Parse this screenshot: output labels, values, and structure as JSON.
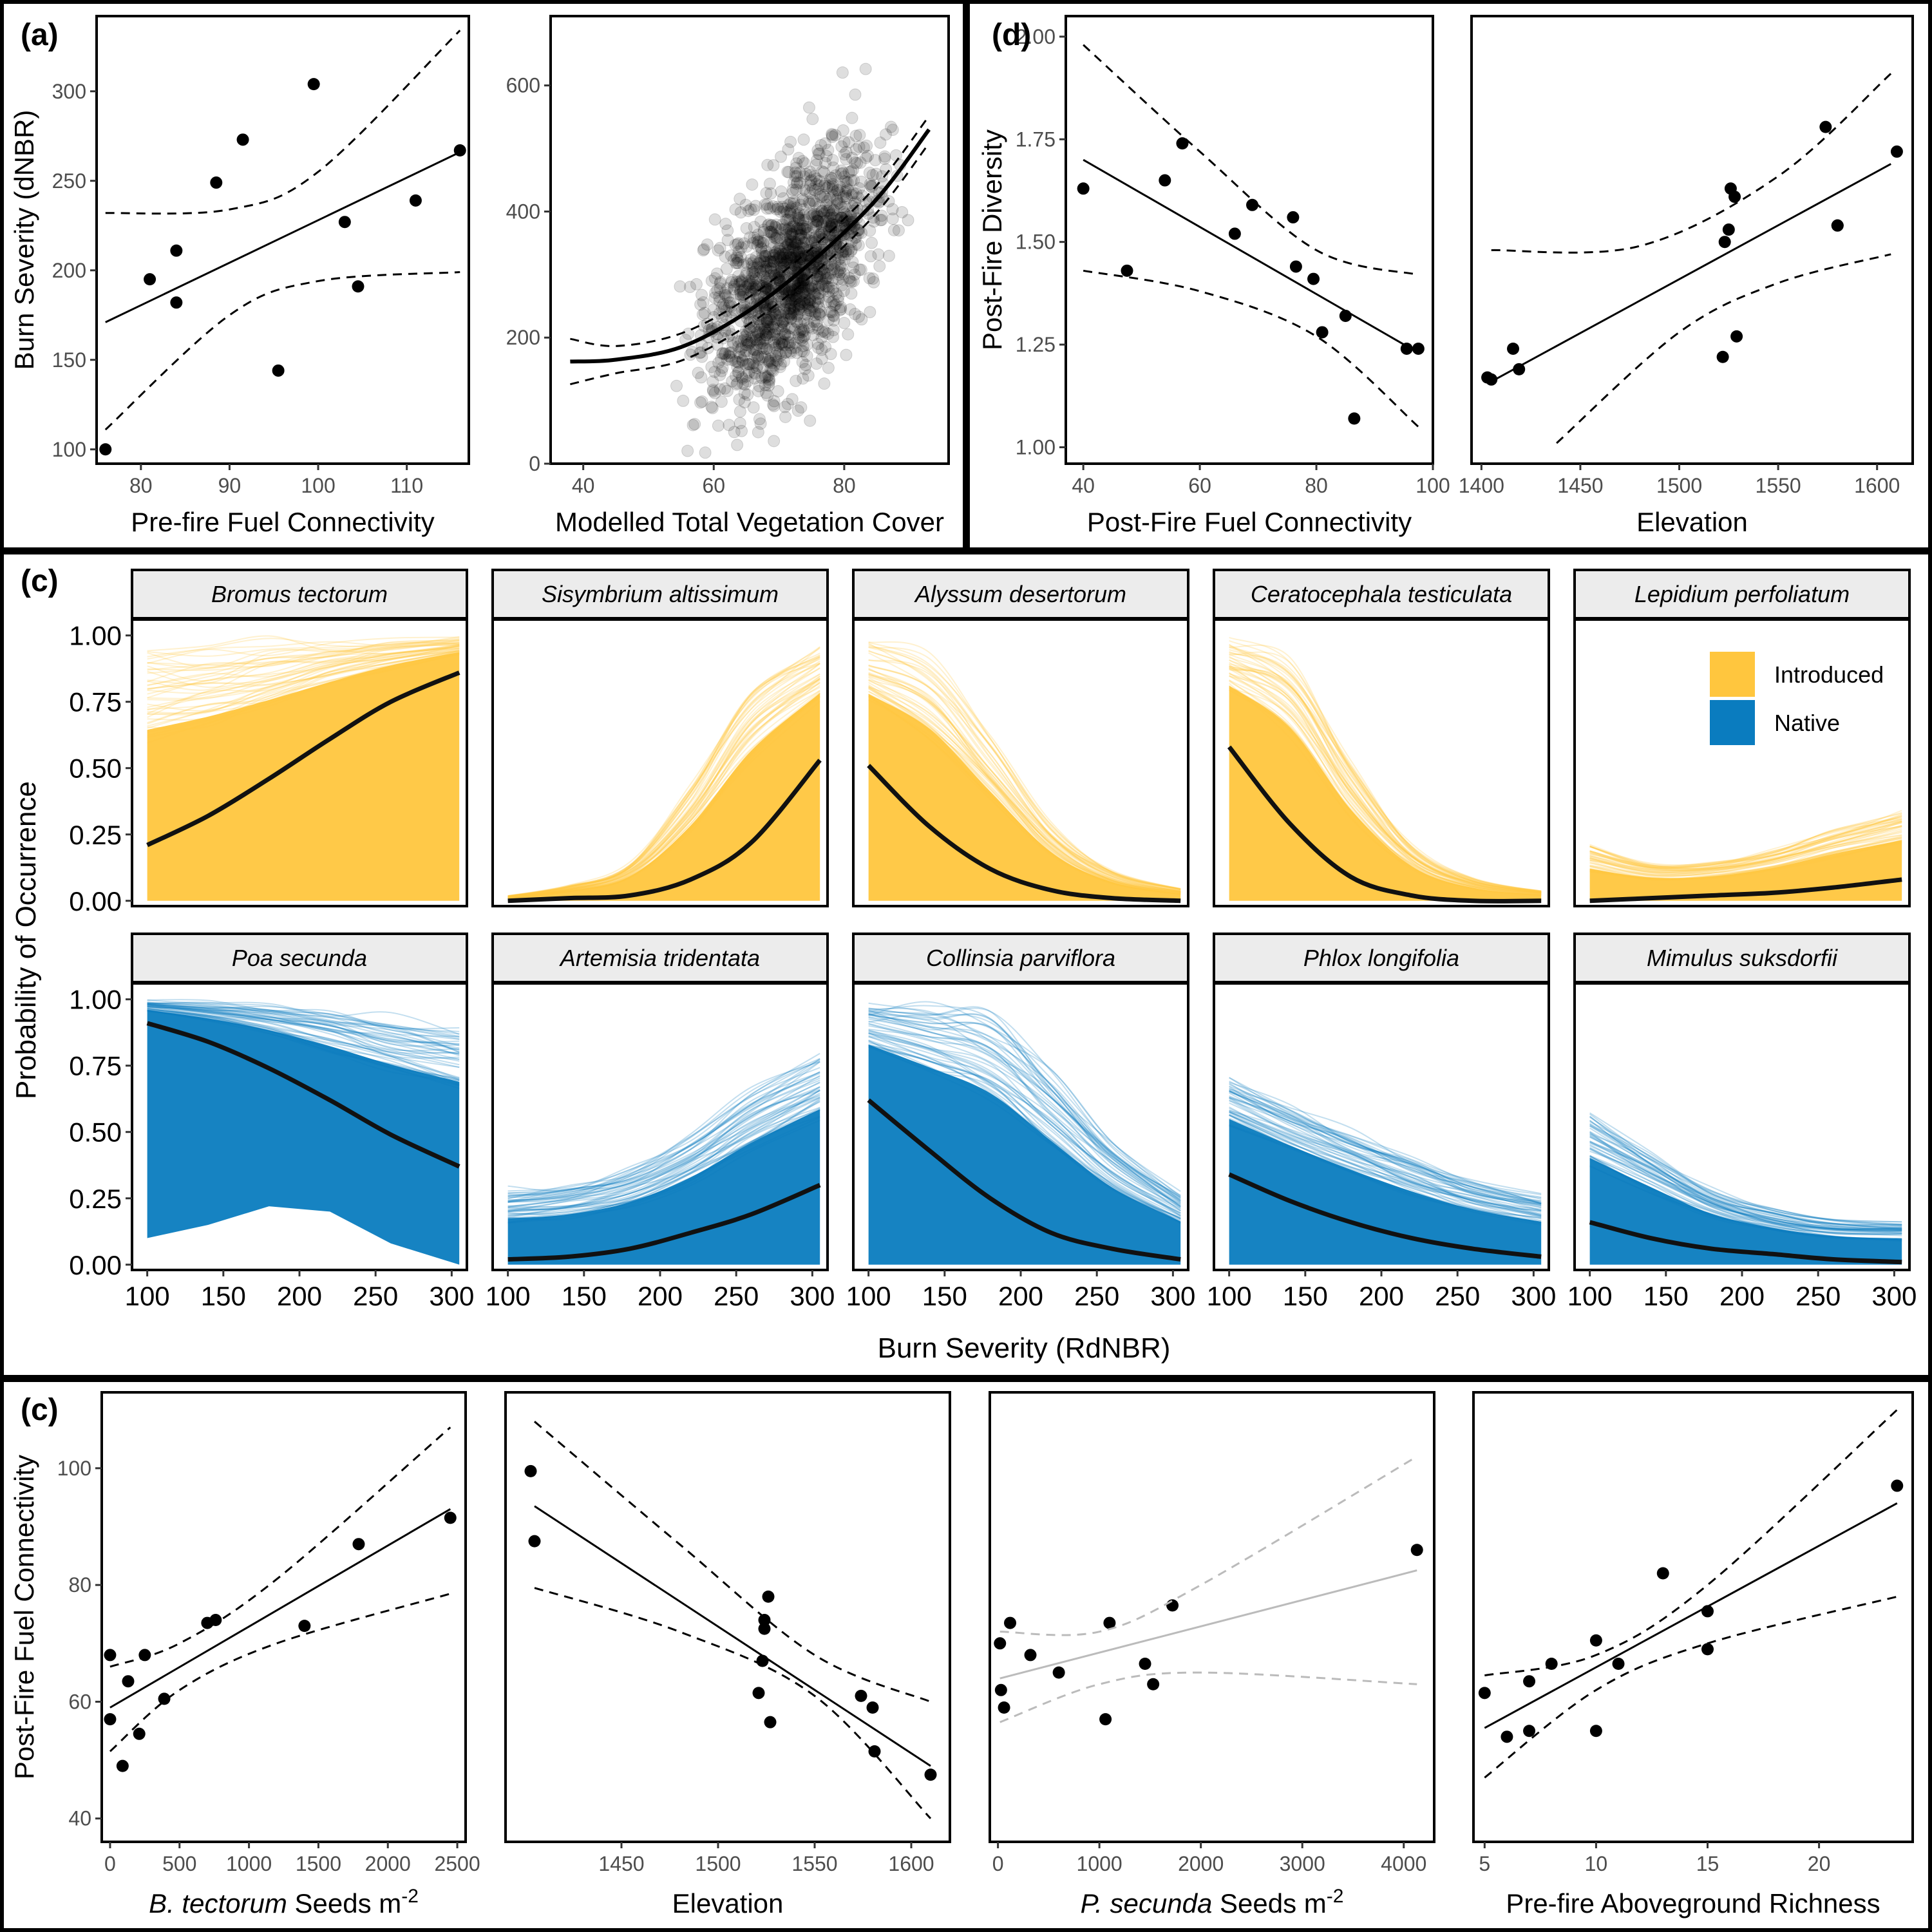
{
  "panel_labels": {
    "a": "(a)",
    "d": "(d)",
    "c1": "(c)",
    "c2": "(c)"
  },
  "colors": {
    "introduced": "#FFC63E",
    "native": "#0A7CBF",
    "line": "#000000",
    "nonsig": "#BBBBBB"
  },
  "chart_data": [
    {
      "id": "a1",
      "type": "scatter",
      "xlabel": "Pre-fire Fuel Connectivity",
      "ylabel": "Burn Severity (dNBR)",
      "xlim": [
        75,
        117
      ],
      "ylim": [
        92,
        342
      ],
      "xticks": [
        80,
        90,
        100,
        110
      ],
      "yticks": [
        100,
        150,
        200,
        250,
        300
      ],
      "points": [
        [
          76,
          100
        ],
        [
          81,
          195
        ],
        [
          84,
          211
        ],
        [
          84,
          182
        ],
        [
          88.5,
          249
        ],
        [
          91.5,
          273
        ],
        [
          95.5,
          144
        ],
        [
          99.5,
          304
        ],
        [
          103,
          227
        ],
        [
          104.5,
          191
        ],
        [
          111,
          239
        ],
        [
          116,
          267
        ]
      ],
      "fit": {
        "x0": 76,
        "y0": 171,
        "x1": 116,
        "y1": 266,
        "lower": [
          [
            76,
            111
          ],
          [
            90,
            175
          ],
          [
            100,
            194
          ],
          [
            116,
            199
          ]
        ],
        "upper": [
          [
            76,
            232
          ],
          [
            90,
            234
          ],
          [
            100,
            255
          ],
          [
            116,
            334
          ]
        ]
      }
    },
    {
      "id": "a2",
      "type": "scatter",
      "xlabel": "Modelled Total Vegetation Cover",
      "ylabel": "",
      "xlim": [
        35,
        96
      ],
      "ylim": [
        0,
        710
      ],
      "xticks": [
        40,
        60,
        80
      ],
      "yticks": [
        0,
        200,
        400,
        600
      ],
      "points_note": "n~1500 semi-transparent points, mean rising from ~160 to ~500",
      "fit": {
        "curve": [
          [
            38,
            162
          ],
          [
            45,
            165
          ],
          [
            55,
            185
          ],
          [
            65,
            240
          ],
          [
            75,
            320
          ],
          [
            85,
            420
          ],
          [
            93,
            530
          ]
        ],
        "band": 12
      }
    },
    {
      "id": "d1",
      "type": "scatter",
      "xlabel": "Post-Fire Fuel Connectivity",
      "ylabel": "Post-Fire Diversity",
      "xlim": [
        37,
        100
      ],
      "ylim": [
        0.96,
        2.05
      ],
      "xticks": [
        40,
        60,
        80,
        100
      ],
      "xticklabels": [
        "40",
        "60",
        "80",
        "100"
      ],
      "yticks": [
        1.0,
        1.25,
        1.5,
        1.75,
        2.0
      ],
      "yticklabels": [
        "1.00",
        "1.25",
        "1.50",
        "1.75",
        "2.00"
      ],
      "points": [
        [
          40,
          1.63
        ],
        [
          47.5,
          1.43
        ],
        [
          54,
          1.65
        ],
        [
          57,
          1.74
        ],
        [
          66,
          1.52
        ],
        [
          69,
          1.59
        ],
        [
          76,
          1.56
        ],
        [
          76.5,
          1.44
        ],
        [
          79.5,
          1.41
        ],
        [
          81,
          1.28
        ],
        [
          85,
          1.32
        ],
        [
          86.5,
          1.07
        ],
        [
          95.5,
          1.24
        ],
        [
          97.5,
          1.24
        ]
      ],
      "fit": {
        "x0": 40,
        "y0": 1.7,
        "x1": 97.5,
        "y1": 1.23,
        "lower": [
          [
            40,
            1.43
          ],
          [
            60,
            1.38
          ],
          [
            80,
            1.27
          ],
          [
            97.5,
            1.05
          ]
        ],
        "upper": [
          [
            40,
            1.98
          ],
          [
            60,
            1.72
          ],
          [
            80,
            1.48
          ],
          [
            97.5,
            1.42
          ]
        ]
      }
    },
    {
      "id": "d2",
      "type": "scatter",
      "xlabel": "Elevation",
      "ylabel": "",
      "xlim": [
        1395,
        1618
      ],
      "ylim": [
        0.96,
        2.05
      ],
      "xticks": [
        1400,
        1450,
        1500,
        1550,
        1600
      ],
      "yticks": [],
      "points": [
        [
          1403,
          1.17
        ],
        [
          1405,
          1.165
        ],
        [
          1416,
          1.24
        ],
        [
          1419,
          1.19
        ],
        [
          1522,
          1.22
        ],
        [
          1523,
          1.5
        ],
        [
          1525,
          1.53
        ],
        [
          1526,
          1.63
        ],
        [
          1528,
          1.61
        ],
        [
          1529,
          1.27
        ],
        [
          1574,
          1.78
        ],
        [
          1580,
          1.54
        ],
        [
          1580,
          1.54
        ],
        [
          1610,
          1.72
        ]
      ],
      "fit": {
        "x0": 1405,
        "y0": 1.16,
        "x1": 1607,
        "y1": 1.69,
        "lower": [
          [
            1438,
            1.01
          ],
          [
            1500,
            1.28
          ],
          [
            1550,
            1.4
          ],
          [
            1607,
            1.47
          ]
        ],
        "upper": [
          [
            1405,
            1.48
          ],
          [
            1480,
            1.49
          ],
          [
            1550,
            1.66
          ],
          [
            1607,
            1.91
          ]
        ]
      }
    },
    {
      "id": "c_occurrence",
      "type": "line",
      "xlabel": "Burn Severity (RdNBR)",
      "ylabel": "Probability of Occurrence",
      "xlim": [
        90,
        310
      ],
      "ylim": [
        -0.02,
        1.06
      ],
      "xticks": [
        100,
        150,
        200,
        250,
        300
      ],
      "yticks": [
        0,
        0.25,
        0.5,
        0.75,
        1.0
      ],
      "yticklabels": [
        "0.00",
        "0.25",
        "0.50",
        "0.75",
        "1.00"
      ],
      "legend": {
        "position": "top-right",
        "entries": [
          "Introduced",
          "Native"
        ]
      },
      "species": [
        {
          "name": "Bromus tectorum",
          "group": "Introduced",
          "mean": [
            0.21,
            0.32,
            0.46,
            0.61,
            0.75,
            0.86
          ],
          "env": [
            1,
            1,
            1,
            1,
            1,
            1
          ],
          "envlow": [
            0,
            0,
            0,
            0,
            0,
            0
          ]
        },
        {
          "name": "Sisymbrium altissimum",
          "group": "Introduced",
          "mean": [
            0.0,
            0.01,
            0.02,
            0.08,
            0.22,
            0.53
          ],
          "env": [
            0.02,
            0.06,
            0.15,
            0.45,
            0.85,
            0.99
          ],
          "envlow": [
            0,
            0,
            0,
            0,
            0,
            0
          ]
        },
        {
          "name": "Alyssum desertorum",
          "group": "Introduced",
          "mean": [
            0.51,
            0.28,
            0.12,
            0.04,
            0.01,
            0.0
          ],
          "env": [
            1,
            0.95,
            0.65,
            0.3,
            0.12,
            0.05
          ],
          "envlow": [
            0,
            0,
            0,
            0,
            0,
            0
          ]
        },
        {
          "name": "Ceratocephala testiculata",
          "group": "Introduced",
          "mean": [
            0.58,
            0.29,
            0.09,
            0.02,
            0.0,
            0.0
          ],
          "env": [
            1,
            0.95,
            0.55,
            0.22,
            0.09,
            0.04
          ],
          "envlow": [
            0,
            0,
            0,
            0,
            0,
            0
          ]
        },
        {
          "name": "Lepidium perfoliatum",
          "group": "Introduced",
          "mean": [
            0.0,
            0.01,
            0.02,
            0.03,
            0.05,
            0.08
          ],
          "env": [
            0.22,
            0.15,
            0.15,
            0.2,
            0.28,
            0.35
          ],
          "envlow": [
            0,
            0,
            0,
            0,
            0,
            0
          ]
        },
        {
          "name": "Poa secunda",
          "group": "Native",
          "mean": [
            0.91,
            0.84,
            0.74,
            0.62,
            0.49,
            0.37
          ],
          "env": [
            1,
            1,
            1,
            0.99,
            0.97,
            0.95
          ],
          "envlow": [
            0.1,
            0.15,
            0.22,
            0.2,
            0.08,
            0.0
          ]
        },
        {
          "name": "Artemisia tridentata",
          "group": "Native",
          "mean": [
            0.02,
            0.03,
            0.06,
            0.12,
            0.19,
            0.3
          ],
          "env": [
            0.3,
            0.32,
            0.38,
            0.5,
            0.68,
            0.82
          ],
          "envlow": [
            0,
            0,
            0,
            0,
            0,
            0
          ]
        },
        {
          "name": "Collinsia parviflora",
          "group": "Native",
          "mean": [
            0.62,
            0.43,
            0.25,
            0.12,
            0.06,
            0.02
          ],
          "env": [
            1,
            1,
            0.97,
            0.75,
            0.48,
            0.28
          ],
          "envlow": [
            0,
            0,
            0,
            0,
            0,
            0
          ]
        },
        {
          "name": "Phlox longifolia",
          "group": "Native",
          "mean": [
            0.34,
            0.24,
            0.16,
            0.1,
            0.06,
            0.03
          ],
          "env": [
            0.72,
            0.62,
            0.52,
            0.42,
            0.33,
            0.27
          ],
          "envlow": [
            0,
            0,
            0,
            0,
            0,
            0
          ]
        },
        {
          "name": "Mimulus suksdorfii",
          "group": "Native",
          "mean": [
            0.16,
            0.1,
            0.06,
            0.04,
            0.02,
            0.01
          ],
          "env": [
            0.6,
            0.45,
            0.3,
            0.22,
            0.18,
            0.17
          ],
          "envlow": [
            0,
            0,
            0,
            0,
            0,
            0
          ]
        }
      ]
    },
    {
      "id": "c2_1",
      "type": "scatter",
      "xlabel_italic": "B. tectorum",
      "xlabel_rest": " Seeds m",
      "xlabel_sup": "-2",
      "ylabel": "Post-Fire Fuel Connectivity",
      "xlim": [
        -60,
        2560
      ],
      "ylim": [
        36,
        113
      ],
      "xticks": [
        0,
        500,
        1000,
        1500,
        2000,
        2500
      ],
      "yticks": [
        40,
        60,
        80,
        100
      ],
      "points": [
        [
          0,
          68
        ],
        [
          0,
          57
        ],
        [
          90,
          49
        ],
        [
          130,
          63.5
        ],
        [
          210,
          54.5
        ],
        [
          250,
          68
        ],
        [
          390,
          60.5
        ],
        [
          700,
          73.5
        ],
        [
          760,
          74
        ],
        [
          1400,
          73
        ],
        [
          1790,
          87
        ],
        [
          2450,
          91.5
        ]
      ],
      "fit": {
        "x0": 0,
        "y0": 59,
        "x1": 2450,
        "y1": 93,
        "lower": [
          [
            0,
            51.5
          ],
          [
            500,
            62
          ],
          [
            1200,
            70
          ],
          [
            2450,
            78.5
          ]
        ],
        "upper": [
          [
            0,
            66
          ],
          [
            500,
            70
          ],
          [
            1200,
            81
          ],
          [
            2450,
            107
          ]
        ]
      }
    },
    {
      "id": "c2_2",
      "type": "scatter",
      "xlabel": "Elevation",
      "ylabel": "",
      "xlim": [
        1390,
        1620
      ],
      "ylim": [
        36,
        113
      ],
      "xticks": [
        1450,
        1500,
        1550,
        1600
      ],
      "yticks": [],
      "points": [
        [
          1403,
          99.5
        ],
        [
          1405,
          87.5
        ],
        [
          1521,
          61.5
        ],
        [
          1523,
          67
        ],
        [
          1524,
          72.5
        ],
        [
          1524,
          74
        ],
        [
          1526,
          78
        ],
        [
          1527,
          56.5
        ],
        [
          1574,
          61
        ],
        [
          1580,
          59
        ],
        [
          1581,
          51.5
        ],
        [
          1610,
          47.5
        ]
      ],
      "fit": {
        "x0": 1405,
        "y0": 93.5,
        "x1": 1610,
        "y1": 49,
        "lower": [
          [
            1405,
            79.5
          ],
          [
            1480,
            72
          ],
          [
            1550,
            61
          ],
          [
            1610,
            40
          ]
        ],
        "upper": [
          [
            1405,
            108
          ],
          [
            1480,
            87
          ],
          [
            1550,
            68
          ],
          [
            1610,
            60
          ]
        ]
      }
    },
    {
      "id": "c2_3",
      "type": "scatter",
      "xlabel_italic": "P. secunda",
      "xlabel_rest": " Seeds m",
      "xlabel_sup": "-2",
      "ylabel": "",
      "xlim": [
        -80,
        4300
      ],
      "ylim": [
        36,
        113
      ],
      "xticks": [
        0,
        1000,
        2000,
        3000,
        4000
      ],
      "yticks": [],
      "points": [
        [
          20,
          70
        ],
        [
          30,
          62
        ],
        [
          60,
          59
        ],
        [
          120,
          73.5
        ],
        [
          320,
          68
        ],
        [
          600,
          65
        ],
        [
          1060,
          57
        ],
        [
          1100,
          73.5
        ],
        [
          1450,
          66.5
        ],
        [
          1530,
          63
        ],
        [
          1720,
          76.5
        ],
        [
          4130,
          86
        ]
      ],
      "fit": {
        "x0": 20,
        "y0": 64,
        "x1": 4130,
        "y1": 82.5,
        "significant": false,
        "lower": [
          [
            20,
            56.5
          ],
          [
            1000,
            63
          ],
          [
            2000,
            65
          ],
          [
            4130,
            63
          ]
        ],
        "upper": [
          [
            20,
            72
          ],
          [
            1000,
            72
          ],
          [
            2000,
            80
          ],
          [
            4130,
            102
          ]
        ]
      }
    },
    {
      "id": "c2_4",
      "type": "scatter",
      "xlabel": "Pre-fire  Aboveground Richness",
      "ylabel": "",
      "xlim": [
        4.5,
        24.2
      ],
      "ylim": [
        36,
        113
      ],
      "xticks": [
        5,
        10,
        15,
        20
      ],
      "yticks": [],
      "points": [
        [
          5,
          61.5
        ],
        [
          6,
          54
        ],
        [
          7,
          63.5
        ],
        [
          7,
          55
        ],
        [
          8,
          66.5
        ],
        [
          10,
          70.5
        ],
        [
          10,
          55
        ],
        [
          11,
          66.5
        ],
        [
          13,
          82
        ],
        [
          15,
          75.5
        ],
        [
          15,
          69
        ],
        [
          23.5,
          97
        ]
      ],
      "fit": {
        "x0": 5,
        "y0": 55.5,
        "x1": 23.5,
        "y1": 94,
        "lower": [
          [
            5,
            47
          ],
          [
            10,
            62
          ],
          [
            15,
            70
          ],
          [
            23.5,
            78
          ]
        ],
        "upper": [
          [
            5,
            64.5
          ],
          [
            10,
            68
          ],
          [
            15,
            80
          ],
          [
            23.5,
            110
          ]
        ]
      }
    }
  ]
}
